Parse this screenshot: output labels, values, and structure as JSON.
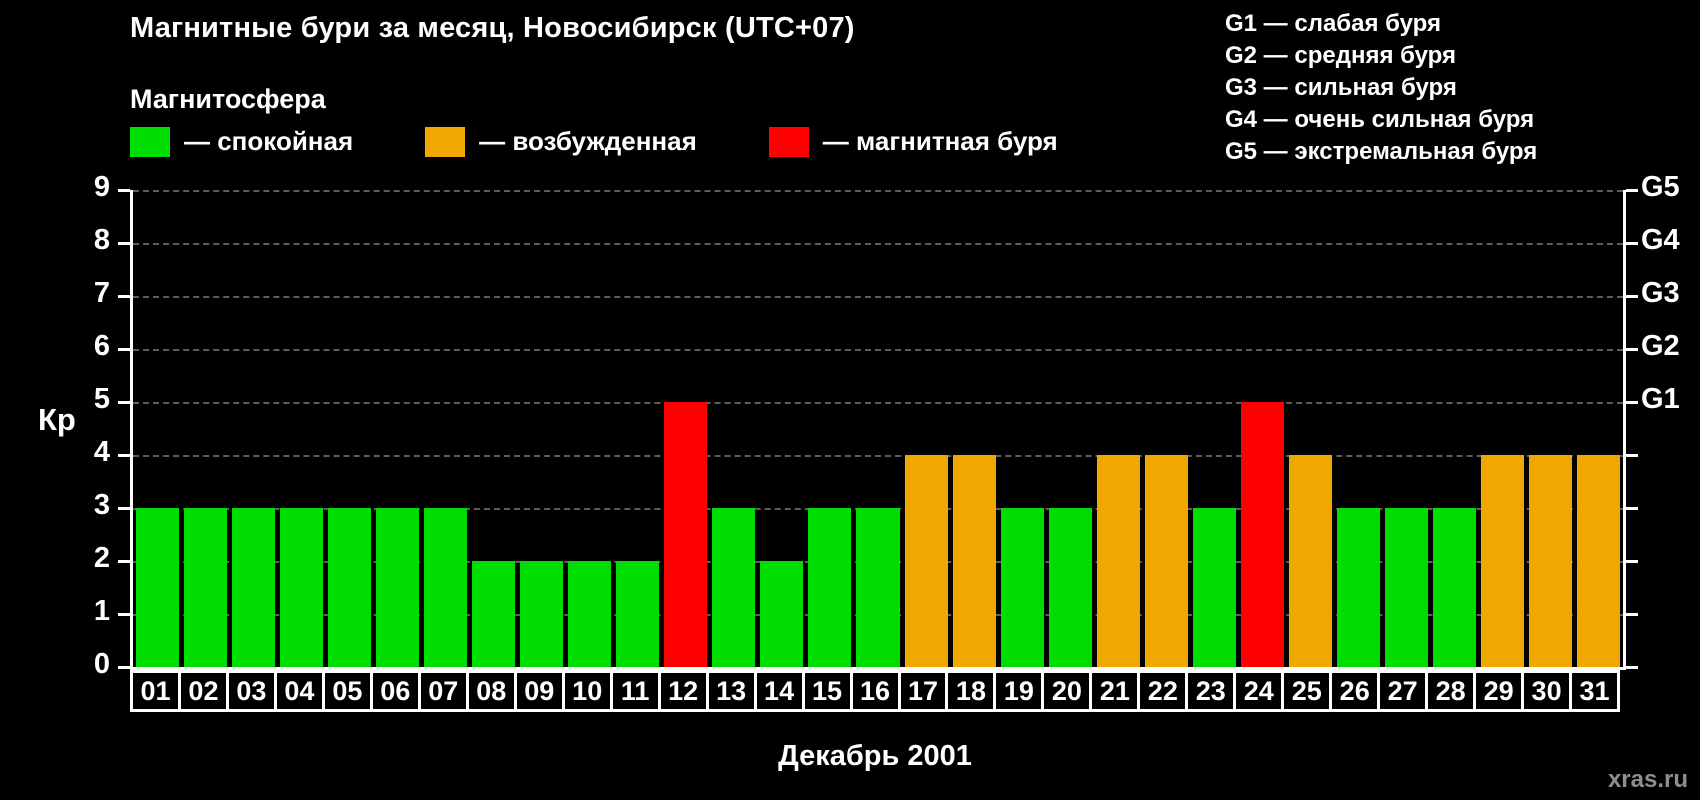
{
  "title": "Магнитные бури за месяц, Новосибирск (UTC+07)",
  "legend": {
    "title": "Магнитосфера",
    "items": [
      {
        "key": "quiet",
        "label": "— спокойная",
        "color": "#00dd00"
      },
      {
        "key": "excited",
        "label": "— возбужденная",
        "color": "#f0a800"
      },
      {
        "key": "storm",
        "label": "— магнитная буря",
        "color": "#ff0000"
      }
    ]
  },
  "g_scale": [
    {
      "level": "G1",
      "kp": 5,
      "label": "G1 — слабая буря"
    },
    {
      "level": "G2",
      "kp": 6,
      "label": "G2 — средняя буря"
    },
    {
      "level": "G3",
      "kp": 7,
      "label": "G3 — сильная буря"
    },
    {
      "level": "G4",
      "kp": 8,
      "label": "G4 — очень сильная буря"
    },
    {
      "level": "G5",
      "kp": 9,
      "label": "G5 — экстремальная буря"
    }
  ],
  "chart_data": {
    "type": "bar",
    "title": "Магнитные бури за месяц, Новосибирск (UTC+07)",
    "xlabel": "Декабрь 2001",
    "ylabel": "Кр",
    "ylim": [
      0,
      9
    ],
    "yticks": [
      0,
      1,
      2,
      3,
      4,
      5,
      6,
      7,
      8,
      9
    ],
    "grid": "horizontal-dashed",
    "legend_position": "top-left",
    "categories": [
      "01",
      "02",
      "03",
      "04",
      "05",
      "06",
      "07",
      "08",
      "09",
      "10",
      "11",
      "12",
      "13",
      "14",
      "15",
      "16",
      "17",
      "18",
      "19",
      "20",
      "21",
      "22",
      "23",
      "24",
      "25",
      "26",
      "27",
      "28",
      "29",
      "30",
      "31"
    ],
    "values": [
      3,
      3,
      3,
      3,
      3,
      3,
      3,
      2,
      2,
      2,
      2,
      5,
      3,
      2,
      3,
      3,
      4,
      4,
      3,
      3,
      4,
      4,
      3,
      5,
      4,
      3,
      3,
      3,
      4,
      4,
      4
    ],
    "statuses": [
      "quiet",
      "quiet",
      "quiet",
      "quiet",
      "quiet",
      "quiet",
      "quiet",
      "quiet",
      "quiet",
      "quiet",
      "quiet",
      "storm",
      "quiet",
      "quiet",
      "quiet",
      "quiet",
      "excited",
      "excited",
      "quiet",
      "quiet",
      "excited",
      "excited",
      "quiet",
      "storm",
      "excited",
      "quiet",
      "quiet",
      "quiet",
      "excited",
      "excited",
      "excited"
    ],
    "right_axis_labels": [
      {
        "kp": 5,
        "label": "G1"
      },
      {
        "kp": 6,
        "label": "G2"
      },
      {
        "kp": 7,
        "label": "G3"
      },
      {
        "kp": 8,
        "label": "G4"
      },
      {
        "kp": 9,
        "label": "G5"
      }
    ]
  },
  "watermark": "xras.ru"
}
